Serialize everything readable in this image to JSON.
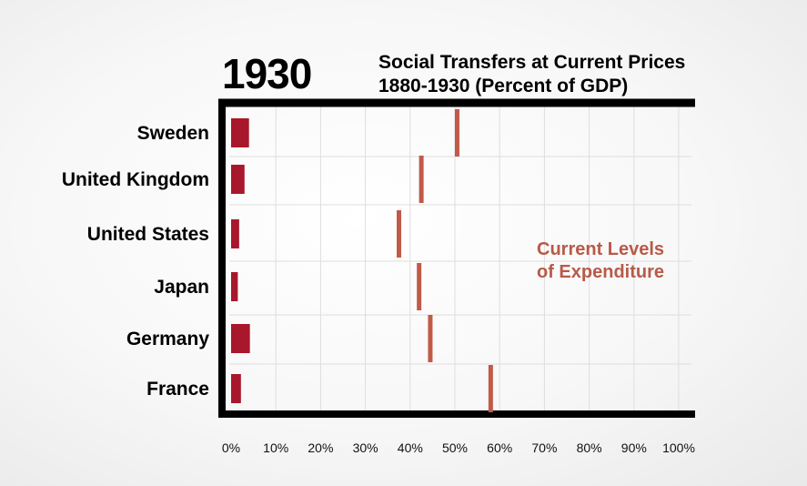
{
  "chart_data": {
    "type": "bar",
    "year_label": "1930",
    "title": "Social Transfers at Current Prices",
    "subtitle": "1880-1930 (Percent of GDP)",
    "categories": [
      "Sweden",
      "United Kingdom",
      "United States",
      "Japan",
      "Germany",
      "France"
    ],
    "series": [
      {
        "name": "1930 social transfers",
        "values": [
          4.0,
          3.0,
          1.8,
          1.5,
          4.2,
          2.2
        ],
        "color": "#a8172c"
      }
    ],
    "reference_markers": {
      "name": "Current Levels of Expenditure",
      "values": [
        50.5,
        42.5,
        37.5,
        42.0,
        44.5,
        58.0
      ],
      "color": "#c15a47"
    },
    "annotation_lines": [
      "Current Levels",
      "of Expenditure"
    ],
    "xlim": [
      0,
      100
    ],
    "x_ticks": [
      "0%",
      "10%",
      "20%",
      "30%",
      "40%",
      "50%",
      "60%",
      "70%",
      "80%",
      "90%",
      "100%"
    ],
    "grid": true,
    "xlabel": "",
    "ylabel": ""
  }
}
